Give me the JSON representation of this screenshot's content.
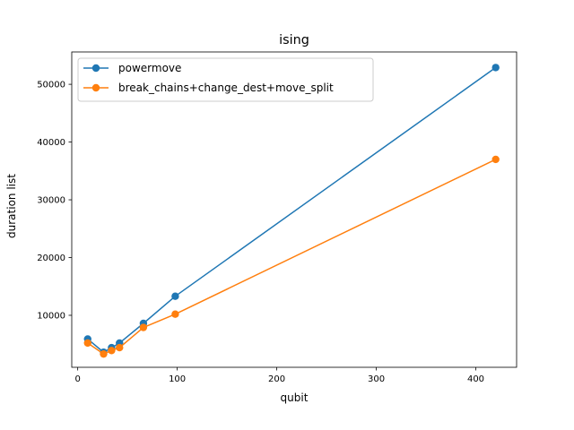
{
  "chart_data": {
    "type": "line",
    "title": "ising",
    "xlabel": "qubit",
    "ylabel": "duration list",
    "xlim": [
      -6,
      441
    ],
    "ylim": [
      1000,
      55600
    ],
    "xticks": [
      0,
      100,
      200,
      300,
      400
    ],
    "yticks": [
      10000,
      20000,
      30000,
      40000,
      50000
    ],
    "grid": false,
    "legend_position": "upper-left",
    "series": [
      {
        "name": "powermove",
        "color": "#1f77b4",
        "marker": "circle",
        "x": [
          10,
          26,
          34,
          42,
          66,
          98,
          420
        ],
        "y": [
          5900,
          3600,
          4400,
          5200,
          8600,
          13300,
          52900
        ]
      },
      {
        "name": "break_chains+change_dest+move_split",
        "color": "#ff7f0e",
        "marker": "circle",
        "x": [
          10,
          26,
          34,
          42,
          66,
          98,
          420
        ],
        "y": [
          5200,
          3300,
          3900,
          4400,
          7900,
          10200,
          37000
        ]
      }
    ]
  }
}
